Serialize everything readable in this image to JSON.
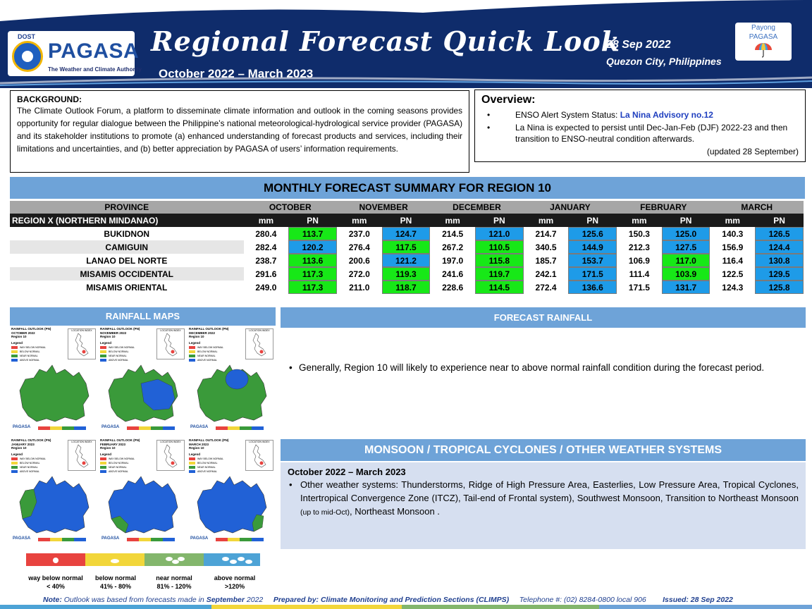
{
  "header": {
    "dost_label": "DOST",
    "pagasa_label": "PAGASA",
    "agency_tagline": "The Weather and Climate Authority",
    "title": "Regional Forecast Quick Look",
    "period": "October 2022 – March 2023",
    "date": "28 Sep 2022",
    "location": "Quezon City, Philippines",
    "payong_line1": "Payong",
    "payong_line2": "PAGASA"
  },
  "background": {
    "heading": "BACKGROUND:",
    "text": "The Climate Outlook Forum, a platform to disseminate climate information and outlook in the coming seasons provides opportunity for regular dialogue between the Philippine’s national meteorological-hydrological service provider (PAGASA) and its stakeholder institutions to promote (a) enhanced understanding of forecast products and services, including their limitations and uncertainties, and (b) better appreciation by PAGASA of users’ information requirements."
  },
  "overview": {
    "heading": "Overview:",
    "item1_prefix": "ENSO Alert System Status: ",
    "item1_link": "La Nina Advisory no.12",
    "item2": "La Nina is expected to persist until Dec-Jan-Feb (DJF) 2022-23 and then transition to ENSO-neutral condition afterwards.",
    "updated": "(updated 28 September)"
  },
  "summary": {
    "heading": "MONTHLY FORECAST SUMMARY FOR REGION 10",
    "province_header": "PROVINCE",
    "region_label": "REGION X (NORTHERN MINDANAO)",
    "mm_label": "mm",
    "pn_label": "PN",
    "months": [
      "OCTOBER",
      "NOVEMBER",
      "DECEMBER",
      "JANUARY",
      "FEBRUARY",
      "MARCH"
    ],
    "rows": [
      {
        "province": "BUKIDNON",
        "values": [
          [
            "280.4",
            "113.7"
          ],
          [
            "237.0",
            "124.7"
          ],
          [
            "214.5",
            "121.0"
          ],
          [
            "214.7",
            "125.6"
          ],
          [
            "150.3",
            "125.0"
          ],
          [
            "140.3",
            "126.5"
          ]
        ]
      },
      {
        "province": "CAMIGUIN",
        "values": [
          [
            "282.4",
            "120.2"
          ],
          [
            "276.4",
            "117.5"
          ],
          [
            "267.2",
            "110.5"
          ],
          [
            "340.5",
            "144.9"
          ],
          [
            "212.3",
            "127.5"
          ],
          [
            "156.9",
            "124.4"
          ]
        ]
      },
      {
        "province": "LANAO DEL NORTE",
        "values": [
          [
            "238.7",
            "113.6"
          ],
          [
            "200.6",
            "121.2"
          ],
          [
            "197.0",
            "115.8"
          ],
          [
            "185.7",
            "153.7"
          ],
          [
            "106.9",
            "117.0"
          ],
          [
            "116.4",
            "130.8"
          ]
        ]
      },
      {
        "province": "MISAMIS OCCIDENTAL",
        "values": [
          [
            "291.6",
            "117.3"
          ],
          [
            "272.0",
            "119.3"
          ],
          [
            "241.6",
            "119.7"
          ],
          [
            "242.1",
            "171.5"
          ],
          [
            "111.4",
            "103.9"
          ],
          [
            "122.5",
            "129.5"
          ]
        ]
      },
      {
        "province": "MISAMIS ORIENTAL",
        "values": [
          [
            "249.0",
            "117.3"
          ],
          [
            "211.0",
            "118.7"
          ],
          [
            "228.6",
            "114.5"
          ],
          [
            "272.4",
            "136.6"
          ],
          [
            "171.5",
            "131.7"
          ],
          [
            "124.3",
            "125.8"
          ]
        ]
      }
    ],
    "pn_colors": [
      [
        "green",
        "blue",
        "blue",
        "blue",
        "blue",
        "blue"
      ],
      [
        "blue",
        "green",
        "green",
        "blue",
        "blue",
        "blue"
      ],
      [
        "green",
        "blue",
        "green",
        "blue",
        "green",
        "blue"
      ],
      [
        "green",
        "green",
        "green",
        "blue",
        "green",
        "blue"
      ],
      [
        "green",
        "green",
        "green",
        "blue",
        "blue",
        "blue"
      ]
    ]
  },
  "rainfall_maps": {
    "heading": "RAINFALL MAPS",
    "map_titles": [
      [
        "RAINFALL OUTLOOK (PN)",
        "OCTOBER 2022",
        "Region 10"
      ],
      [
        "RAINFALL OUTLOOK (PN)",
        "NOVEMBER 2022",
        "Region 10"
      ],
      [
        "RAINFALL OUTLOOK (PN)",
        "DECEMBER 2022",
        "Region 10"
      ],
      [
        "RAINFALL OUTLOOK (PN)",
        "JANUARY 2023",
        "Region 10"
      ],
      [
        "RAINFALL OUTLOOK (PN)",
        "FEBRUARY 2023",
        "Region 10"
      ],
      [
        "RAINFALL OUTLOOK (PN)",
        "MARCH 2023",
        "Region 10"
      ]
    ],
    "legend_label": "Legend",
    "legend_items": [
      "WAY BELOW NORMAL",
      "BELOW NORMAL",
      "NEAR NORMAL",
      "ABOVE NORMAL"
    ],
    "inset_label": "LOCATION INDEX",
    "map_pagasa": "PAGASA",
    "scale": [
      {
        "label": "way below normal",
        "range": "< 40%",
        "color": "#e8433f"
      },
      {
        "label": "below normal",
        "range": "41% - 80%",
        "color": "#f2d63a"
      },
      {
        "label": "near normal",
        "range": "81% - 120%",
        "color": "#83b66c"
      },
      {
        "label": "above normal",
        "range": ">120%",
        "color": "#4da3d6"
      }
    ]
  },
  "forecast_rainfall": {
    "heading": "FORECAST RAINFALL",
    "text": "Generally, Region 10 will likely to experience near to above  normal rainfall condition during the forecast period."
  },
  "monsoon": {
    "heading": "MONSOON / TROPICAL CYCLONES / OTHER WEATHER SYSTEMS",
    "period": "October 2022 – March 2023",
    "text_a": "Other weather systems: Thunderstorms,  Ridge of High Pressure Area,  Easterlies, Low Pressure Area, Tropical Cyclones, Intertropical Convergence Zone (ITCZ), Tail-end of Frontal system), Southwest Monsoon, Transition to Northeast Monsoon ",
    "text_small": "(up to mid-Oct)",
    "text_b": ", Northeast Monsoon ."
  },
  "footer": {
    "note_label": "Note:",
    "note_text": " Outlook was based from forecasts made in ",
    "note_month": "September",
    "note_year": " 2022",
    "prepared": "Prepared by: Climate Monitoring and Prediction Sections (CLIMPS)",
    "telephone": "Telephone #: (02) 8284-0800 local 906",
    "issued": "Issued: 28 Sep 2022"
  },
  "colors": {
    "navy": "#0f2c6b",
    "section_blue": "#6ea3d8",
    "pn_green": "#17e817",
    "pn_blue": "#1e9be8",
    "map_green": "#3a9a3a",
    "map_blue": "#2161d6"
  }
}
